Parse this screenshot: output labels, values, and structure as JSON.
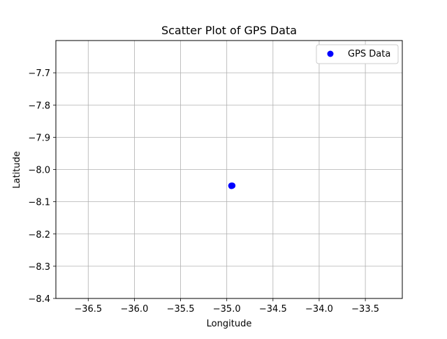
{
  "chart_data": {
    "type": "scatter",
    "title": "Scatter Plot of GPS Data",
    "xlabel": "Longitude",
    "ylabel": "Latitude",
    "xlim": [
      -36.85,
      -33.1
    ],
    "ylim": [
      -8.4,
      -7.6
    ],
    "x_ticks": [
      -36.5,
      -36.0,
      -35.5,
      -35.0,
      -34.5,
      -34.0,
      -33.5
    ],
    "y_ticks": [
      -7.7,
      -7.8,
      -7.9,
      -8.0,
      -8.1,
      -8.2,
      -8.3,
      -8.4
    ],
    "x_tick_labels": [
      "−36.5",
      "−36.0",
      "−35.5",
      "−35.0",
      "−34.5",
      "−34.0",
      "−33.5"
    ],
    "y_tick_labels": [
      "−7.7",
      "−7.8",
      "−7.9",
      "−8.0",
      "−8.1",
      "−8.2",
      "−8.3",
      "−8.4"
    ],
    "grid": true,
    "legend_position": "top-right",
    "series": [
      {
        "name": "GPS Data",
        "color": "#0000ff",
        "points": [
          [
            -34.95,
            -8.05
          ],
          [
            -34.94,
            -8.05
          ],
          [
            -34.95,
            -8.051
          ]
        ]
      }
    ]
  }
}
